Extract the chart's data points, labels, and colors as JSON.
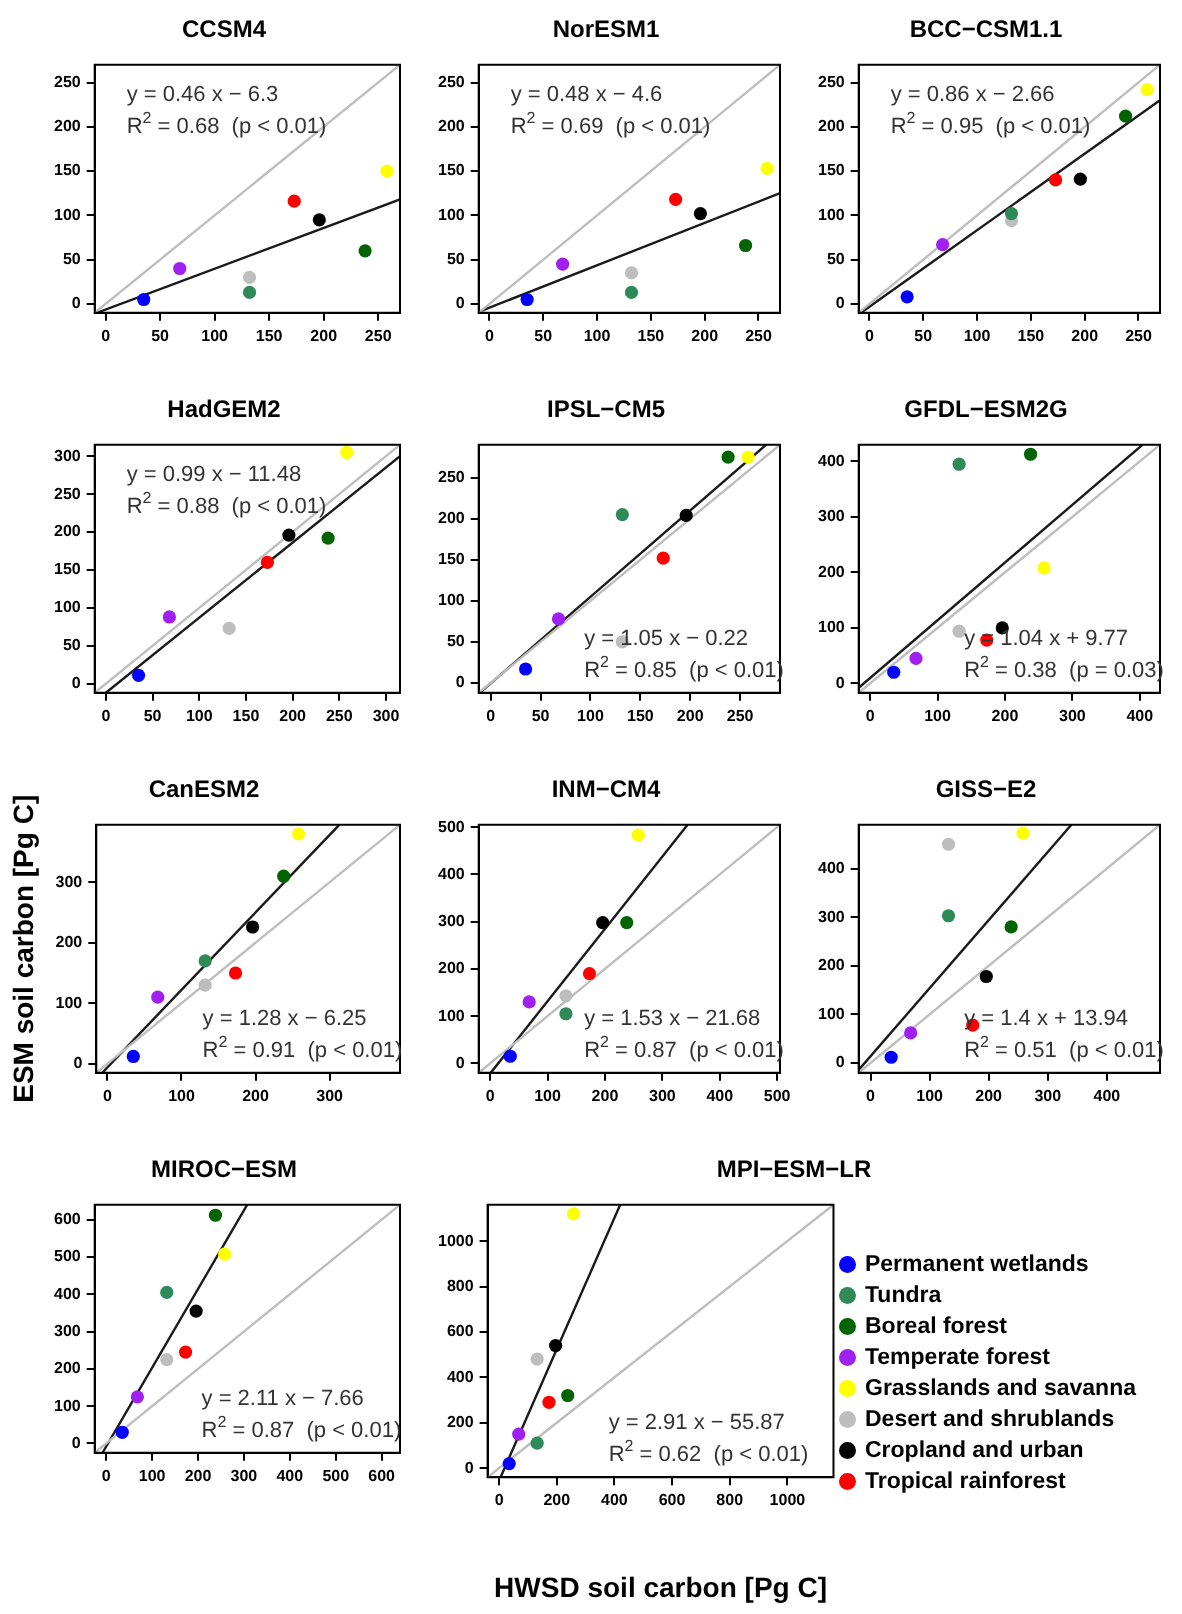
{
  "chart_data": [
    {
      "type": "scatter",
      "title": "CCSM4",
      "marker": "circle",
      "xlim": [
        -10,
        270
      ],
      "ylim": [
        -10,
        270
      ],
      "xticks": [
        0,
        50,
        100,
        150,
        200,
        250
      ],
      "yticks": [
        0,
        50,
        100,
        150,
        200,
        250
      ],
      "annotations": [
        "y = 0.46 x − 6.3",
        "R$^{2}$ = 0.68  (p < 0.01)"
      ],
      "series": [
        {
          "color": "#0000ff",
          "x": [
            35
          ],
          "values": [
            5
          ]
        },
        {
          "color": "#2e8b57",
          "x": [
            132
          ],
          "values": [
            13
          ]
        },
        {
          "color": "#006400",
          "x": [
            238
          ],
          "values": [
            60
          ]
        },
        {
          "color": "#a020f0",
          "x": [
            68
          ],
          "values": [
            40
          ]
        },
        {
          "color": "#ffff00",
          "x": [
            258
          ],
          "values": [
            150
          ]
        },
        {
          "color": "#bebebe",
          "x": [
            132
          ],
          "values": [
            30
          ]
        },
        {
          "color": "#000000",
          "x": [
            196
          ],
          "values": [
            95
          ]
        },
        {
          "color": "#ff0000",
          "x": [
            173
          ],
          "values": [
            116
          ]
        },
        {
          "type": "line",
          "marker": "none",
          "color": "#bebebe",
          "x": [
            -10,
            270
          ],
          "values": [
            -10,
            270
          ]
        },
        {
          "type": "line",
          "marker": "none",
          "color": "#1a1a1a",
          "x": [
            -8,
            270
          ],
          "values": [
            -10,
            118
          ]
        }
      ]
    },
    {
      "type": "scatter",
      "title": "NorESM1",
      "marker": "circle",
      "xlim": [
        -10,
        270
      ],
      "ylim": [
        -10,
        270
      ],
      "xticks": [
        0,
        50,
        100,
        150,
        200,
        250
      ],
      "yticks": [
        0,
        50,
        100,
        150,
        200,
        250
      ],
      "annotations": [
        "y = 0.48 x − 4.6",
        "R$^{2}$ = 0.69  (p < 0.01)"
      ],
      "series": [
        {
          "color": "#0000ff",
          "x": [
            35
          ],
          "values": [
            5
          ]
        },
        {
          "color": "#2e8b57",
          "x": [
            132
          ],
          "values": [
            13
          ]
        },
        {
          "color": "#006400",
          "x": [
            238
          ],
          "values": [
            66
          ]
        },
        {
          "color": "#a020f0",
          "x": [
            68
          ],
          "values": [
            45
          ]
        },
        {
          "color": "#ffff00",
          "x": [
            258
          ],
          "values": [
            153
          ]
        },
        {
          "color": "#bebebe",
          "x": [
            132
          ],
          "values": [
            35
          ]
        },
        {
          "color": "#000000",
          "x": [
            196
          ],
          "values": [
            102
          ]
        },
        {
          "color": "#ff0000",
          "x": [
            173
          ],
          "values": [
            118
          ]
        },
        {
          "type": "line",
          "marker": "none",
          "color": "#bebebe",
          "x": [
            -10,
            270
          ],
          "values": [
            -10,
            270
          ]
        },
        {
          "type": "line",
          "marker": "none",
          "color": "#1a1a1a",
          "x": [
            -10,
            270
          ],
          "values": [
            -9,
            125
          ]
        }
      ]
    },
    {
      "type": "scatter",
      "title": "BCC−CSM1.1",
      "marker": "circle",
      "xlim": [
        -10,
        270
      ],
      "ylim": [
        -10,
        270
      ],
      "xticks": [
        0,
        50,
        100,
        150,
        200,
        250
      ],
      "yticks": [
        0,
        50,
        100,
        150,
        200,
        250
      ],
      "annotations": [
        "y = 0.86 x − 2.66",
        "R$^{2}$ = 0.95  (p < 0.01)"
      ],
      "series": [
        {
          "color": "#0000ff",
          "x": [
            35
          ],
          "values": [
            8
          ]
        },
        {
          "color": "#2e8b57",
          "x": [
            132
          ],
          "values": [
            102
          ]
        },
        {
          "color": "#006400",
          "x": [
            238
          ],
          "values": [
            212
          ]
        },
        {
          "color": "#a020f0",
          "x": [
            68
          ],
          "values": [
            67
          ]
        },
        {
          "color": "#ffff00",
          "x": [
            258
          ],
          "values": [
            242
          ]
        },
        {
          "color": "#bebebe",
          "x": [
            132
          ],
          "values": [
            94
          ]
        },
        {
          "color": "#000000",
          "x": [
            196
          ],
          "values": [
            141
          ]
        },
        {
          "color": "#ff0000",
          "x": [
            173
          ],
          "values": [
            140
          ]
        },
        {
          "type": "line",
          "marker": "none",
          "color": "#bebebe",
          "x": [
            -10,
            270
          ],
          "values": [
            -10,
            270
          ]
        },
        {
          "type": "line",
          "marker": "none",
          "color": "#1a1a1a",
          "x": [
            -8,
            270
          ],
          "values": [
            -10,
            230
          ]
        }
      ]
    },
    {
      "type": "scatter",
      "title": "HadGEM2",
      "marker": "circle",
      "xlim": [
        -12,
        315
      ],
      "ylim": [
        -12,
        315
      ],
      "xticks": [
        0,
        50,
        100,
        150,
        200,
        250,
        300
      ],
      "yticks": [
        0,
        50,
        100,
        150,
        200,
        250,
        300
      ],
      "annotations": [
        "y = 0.99 x − 11.48",
        "R$^{2}$ = 0.88  (p < 0.01)"
      ],
      "series": [
        {
          "color": "#0000ff",
          "x": [
            35
          ],
          "values": [
            11
          ]
        },
        {
          "color": "#006400",
          "x": [
            238
          ],
          "values": [
            192
          ]
        },
        {
          "color": "#a020f0",
          "x": [
            68
          ],
          "values": [
            88
          ]
        },
        {
          "color": "#ffff00",
          "x": [
            258
          ],
          "values": [
            305
          ]
        },
        {
          "color": "#bebebe",
          "x": [
            132
          ],
          "values": [
            73
          ]
        },
        {
          "color": "#000000",
          "x": [
            196
          ],
          "values": [
            196
          ]
        },
        {
          "color": "#ff0000",
          "x": [
            173
          ],
          "values": [
            160
          ]
        },
        {
          "type": "line",
          "marker": "none",
          "color": "#bebebe",
          "x": [
            -12,
            315
          ],
          "values": [
            -12,
            315
          ]
        },
        {
          "type": "line",
          "marker": "none",
          "color": "#1a1a1a",
          "x": [
            0,
            315
          ],
          "values": [
            -12,
            300
          ]
        }
      ]
    },
    {
      "type": "scatter",
      "title": "IPSL−CM5",
      "marker": "circle",
      "xlim": [
        -12,
        290
      ],
      "ylim": [
        -12,
        290
      ],
      "xticks": [
        0,
        50,
        100,
        150,
        200,
        250
      ],
      "yticks": [
        0,
        50,
        100,
        150,
        200,
        250
      ],
      "annotations": [
        "y = 1.05 x − 0.22",
        "R$^{2}$ = 0.85  (p < 0.01)"
      ],
      "series": [
        {
          "color": "#0000ff",
          "x": [
            35
          ],
          "values": [
            17
          ]
        },
        {
          "color": "#2e8b57",
          "x": [
            132
          ],
          "values": [
            205
          ]
        },
        {
          "color": "#006400",
          "x": [
            238
          ],
          "values": [
            275
          ]
        },
        {
          "color": "#a020f0",
          "x": [
            68
          ],
          "values": [
            78
          ]
        },
        {
          "color": "#ffff00",
          "x": [
            258
          ],
          "values": [
            275
          ]
        },
        {
          "color": "#bebebe",
          "x": [
            132
          ],
          "values": [
            50
          ]
        },
        {
          "color": "#000000",
          "x": [
            196
          ],
          "values": [
            204
          ]
        },
        {
          "color": "#ff0000",
          "x": [
            173
          ],
          "values": [
            152
          ]
        },
        {
          "type": "line",
          "marker": "none",
          "color": "#bebebe",
          "x": [
            -12,
            290
          ],
          "values": [
            -12,
            290
          ]
        },
        {
          "type": "line",
          "marker": "none",
          "color": "#1a1a1a",
          "x": [
            -11,
            276
          ],
          "values": [
            -12,
            290
          ]
        }
      ]
    },
    {
      "type": "scatter",
      "title": "GFDL−ESM2G",
      "marker": "circle",
      "xlim": [
        -17,
        430
      ],
      "ylim": [
        -17,
        430
      ],
      "xticks": [
        0,
        100,
        200,
        300,
        400
      ],
      "yticks": [
        0,
        100,
        200,
        300,
        400
      ],
      "annotations": [
        "y = 1.04 x + 9.77",
        "R$^{2}$ = 0.38  (p = 0.03)"
      ],
      "series": [
        {
          "color": "#0000ff",
          "x": [
            35
          ],
          "values": [
            20
          ]
        },
        {
          "color": "#2e8b57",
          "x": [
            132
          ],
          "values": [
            395
          ]
        },
        {
          "color": "#006400",
          "x": [
            238
          ],
          "values": [
            413
          ]
        },
        {
          "color": "#a020f0",
          "x": [
            68
          ],
          "values": [
            45
          ]
        },
        {
          "color": "#ffff00",
          "x": [
            258
          ],
          "values": [
            208
          ]
        },
        {
          "color": "#bebebe",
          "x": [
            132
          ],
          "values": [
            94
          ]
        },
        {
          "color": "#000000",
          "x": [
            196
          ],
          "values": [
            100
          ]
        },
        {
          "color": "#ff0000",
          "x": [
            173
          ],
          "values": [
            78
          ]
        },
        {
          "type": "line",
          "marker": "none",
          "color": "#bebebe",
          "x": [
            -17,
            430
          ],
          "values": [
            -17,
            430
          ]
        },
        {
          "type": "line",
          "marker": "none",
          "color": "#1a1a1a",
          "x": [
            -17,
            404
          ],
          "values": [
            -8,
            430
          ]
        }
      ]
    },
    {
      "type": "scatter",
      "title": "CanESM2",
      "ylabel": "ESM soil carbon [Pg C]",
      "marker": "circle",
      "xlim": [
        -15,
        395
      ],
      "ylim": [
        -15,
        395
      ],
      "xticks": [
        0,
        100,
        200,
        300
      ],
      "yticks": [
        0,
        100,
        200,
        300
      ],
      "annotations": [
        "y = 1.28 x − 6.25",
        "R$^{2}$ = 0.91  (p < 0.01)"
      ],
      "series": [
        {
          "color": "#0000ff",
          "x": [
            35
          ],
          "values": [
            12
          ]
        },
        {
          "color": "#2e8b57",
          "x": [
            132
          ],
          "values": [
            170
          ]
        },
        {
          "color": "#006400",
          "x": [
            238
          ],
          "values": [
            310
          ]
        },
        {
          "color": "#a020f0",
          "x": [
            68
          ],
          "values": [
            110
          ]
        },
        {
          "color": "#ffff00",
          "x": [
            258
          ],
          "values": [
            380
          ]
        },
        {
          "color": "#bebebe",
          "x": [
            132
          ],
          "values": [
            130
          ]
        },
        {
          "color": "#000000",
          "x": [
            196
          ],
          "values": [
            226
          ]
        },
        {
          "color": "#ff0000",
          "x": [
            173
          ],
          "values": [
            150
          ]
        },
        {
          "type": "line",
          "marker": "none",
          "color": "#bebebe",
          "x": [
            -15,
            395
          ],
          "values": [
            -15,
            395
          ]
        },
        {
          "type": "line",
          "marker": "none",
          "color": "#1a1a1a",
          "x": [
            -7,
            313
          ],
          "values": [
            -15,
            395
          ]
        }
      ]
    },
    {
      "type": "scatter",
      "title": "INM−CM4",
      "marker": "circle",
      "xlim": [
        -20,
        505
      ],
      "ylim": [
        -20,
        505
      ],
      "xticks": [
        0,
        100,
        200,
        300,
        400,
        500
      ],
      "yticks": [
        0,
        100,
        200,
        300,
        400,
        500
      ],
      "annotations": [
        "y = 1.53 x − 21.68",
        "R$^{2}$ = 0.87  (p < 0.01)"
      ],
      "series": [
        {
          "color": "#0000ff",
          "x": [
            35
          ],
          "values": [
            15
          ]
        },
        {
          "color": "#2e8b57",
          "x": [
            132
          ],
          "values": [
            105
          ]
        },
        {
          "color": "#006400",
          "x": [
            238
          ],
          "values": [
            298
          ]
        },
        {
          "color": "#a020f0",
          "x": [
            68
          ],
          "values": [
            130
          ]
        },
        {
          "color": "#ffff00",
          "x": [
            258
          ],
          "values": [
            483
          ]
        },
        {
          "color": "#bebebe",
          "x": [
            132
          ],
          "values": [
            143
          ]
        },
        {
          "color": "#000000",
          "x": [
            196
          ],
          "values": [
            298
          ]
        },
        {
          "color": "#ff0000",
          "x": [
            173
          ],
          "values": [
            190
          ]
        },
        {
          "type": "line",
          "marker": "none",
          "color": "#bebebe",
          "x": [
            -20,
            505
          ],
          "values": [
            -20,
            505
          ]
        },
        {
          "type": "line",
          "marker": "none",
          "color": "#1a1a1a",
          "x": [
            1,
            344
          ],
          "values": [
            -20,
            505
          ]
        }
      ]
    },
    {
      "type": "scatter",
      "title": "GISS−E2",
      "marker": "circle",
      "xlim": [
        -20,
        490
      ],
      "ylim": [
        -20,
        490
      ],
      "xticks": [
        0,
        100,
        200,
        300,
        400
      ],
      "yticks": [
        0,
        100,
        200,
        300,
        400
      ],
      "annotations": [
        "y = 1.4 x + 13.94",
        "R$^{2}$ = 0.51  (p < 0.01)"
      ],
      "series": [
        {
          "color": "#0000ff",
          "x": [
            35
          ],
          "values": [
            12
          ]
        },
        {
          "color": "#2e8b57",
          "x": [
            132
          ],
          "values": [
            303
          ]
        },
        {
          "color": "#006400",
          "x": [
            238
          ],
          "values": [
            280
          ]
        },
        {
          "color": "#a020f0",
          "x": [
            68
          ],
          "values": [
            62
          ]
        },
        {
          "color": "#ffff00",
          "x": [
            258
          ],
          "values": [
            473
          ]
        },
        {
          "color": "#bebebe",
          "x": [
            132
          ],
          "values": [
            450
          ]
        },
        {
          "color": "#000000",
          "x": [
            196
          ],
          "values": [
            178
          ]
        },
        {
          "color": "#ff0000",
          "x": [
            173
          ],
          "values": [
            78
          ]
        },
        {
          "type": "line",
          "marker": "none",
          "color": "#bebebe",
          "x": [
            -20,
            490
          ],
          "values": [
            -20,
            490
          ]
        },
        {
          "type": "line",
          "marker": "none",
          "color": "#1a1a1a",
          "x": [
            -20,
            340
          ],
          "values": [
            -14,
            490
          ]
        }
      ]
    },
    {
      "type": "scatter",
      "title": "MIROC−ESM",
      "marker": "circle",
      "xlim": [
        -25,
        640
      ],
      "ylim": [
        -25,
        640
      ],
      "xticks": [
        0,
        100,
        200,
        300,
        400,
        500,
        600
      ],
      "yticks": [
        0,
        100,
        200,
        300,
        400,
        500,
        600
      ],
      "annotations": [
        "y = 2.11 x − 7.66",
        "R$^{2}$ = 0.87  (p < 0.01)"
      ],
      "series": [
        {
          "color": "#0000ff",
          "x": [
            35
          ],
          "values": [
            30
          ]
        },
        {
          "color": "#2e8b57",
          "x": [
            132
          ],
          "values": [
            405
          ]
        },
        {
          "color": "#006400",
          "x": [
            238
          ],
          "values": [
            612
          ]
        },
        {
          "color": "#a020f0",
          "x": [
            68
          ],
          "values": [
            125
          ]
        },
        {
          "color": "#ffff00",
          "x": [
            258
          ],
          "values": [
            508
          ]
        },
        {
          "color": "#bebebe",
          "x": [
            132
          ],
          "values": [
            225
          ]
        },
        {
          "color": "#000000",
          "x": [
            196
          ],
          "values": [
            355
          ]
        },
        {
          "color": "#ff0000",
          "x": [
            173
          ],
          "values": [
            245
          ]
        },
        {
          "type": "line",
          "marker": "none",
          "color": "#bebebe",
          "x": [
            -25,
            640
          ],
          "values": [
            -25,
            640
          ]
        },
        {
          "type": "line",
          "marker": "none",
          "color": "#1a1a1a",
          "x": [
            -8,
            307
          ],
          "values": [
            -25,
            640
          ]
        }
      ]
    },
    {
      "type": "scatter",
      "title": "MPI−ESM−LR",
      "xlabel": "HWSD soil carbon [Pg C]",
      "marker": "circle",
      "legend": "right",
      "xlim": [
        -40,
        1160
      ],
      "ylim": [
        -40,
        1160
      ],
      "xticks": [
        0,
        200,
        400,
        600,
        800,
        1000
      ],
      "yticks": [
        0,
        200,
        400,
        600,
        800,
        1000
      ],
      "annotations": [
        "y = 2.91 x − 55.87",
        "R$^{2}$ = 0.62  (p < 0.01)"
      ],
      "series": [
        {
          "name": "Permanent wetlands",
          "color": "#0000ff",
          "x": [
            35
          ],
          "values": [
            20
          ]
        },
        {
          "name": "Tundra",
          "color": "#2e8b57",
          "x": [
            132
          ],
          "values": [
            110
          ]
        },
        {
          "name": "Boreal forest",
          "color": "#006400",
          "x": [
            238
          ],
          "values": [
            320
          ]
        },
        {
          "name": "Temperate forest",
          "color": "#a020f0",
          "x": [
            68
          ],
          "values": [
            150
          ]
        },
        {
          "name": "Grasslands and savanna",
          "color": "#ffff00",
          "x": [
            258
          ],
          "values": [
            1120
          ]
        },
        {
          "name": "Desert and shrublands",
          "color": "#bebebe",
          "x": [
            132
          ],
          "values": [
            480
          ]
        },
        {
          "name": "Cropland and urban",
          "color": "#000000",
          "x": [
            196
          ],
          "values": [
            540
          ]
        },
        {
          "name": "Tropical rainforest",
          "color": "#ff0000",
          "x": [
            173
          ],
          "values": [
            290
          ]
        },
        {
          "type": "line",
          "marker": "none",
          "color": "#bebebe",
          "x": [
            -40,
            1160
          ],
          "values": [
            -40,
            1160
          ]
        },
        {
          "type": "line",
          "marker": "none",
          "color": "#1a1a1a",
          "x": [
            5,
            420
          ],
          "values": [
            -40,
            1160
          ]
        }
      ]
    }
  ]
}
